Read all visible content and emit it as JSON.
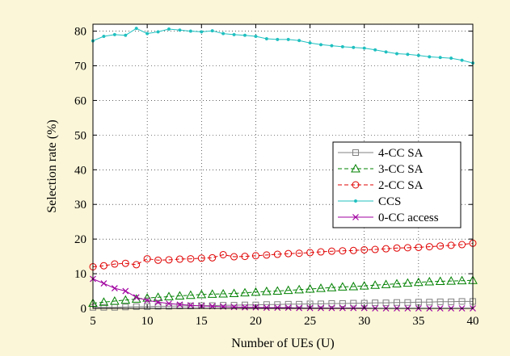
{
  "chart_data": {
    "type": "line",
    "xlabel": "Number of UEs (U)",
    "ylabel": "Selection rate (%)",
    "xlim": [
      5,
      40
    ],
    "ylim": [
      0,
      82
    ],
    "xticks": [
      5,
      10,
      15,
      20,
      25,
      30,
      35,
      40
    ],
    "yticks": [
      0,
      10,
      20,
      30,
      40,
      50,
      60,
      70,
      80
    ],
    "grid": "dotted",
    "legend": "center-right",
    "x": [
      5,
      6,
      7,
      8,
      9,
      10,
      11,
      12,
      13,
      14,
      15,
      16,
      17,
      18,
      19,
      20,
      21,
      22,
      23,
      24,
      25,
      26,
      27,
      28,
      29,
      30,
      31,
      32,
      33,
      34,
      35,
      36,
      37,
      38,
      39,
      40
    ],
    "series": [
      {
        "name": "4-CC SA",
        "color": "#808080",
        "marker": "square",
        "dash": "solid",
        "values": [
          0.3,
          0.3,
          0.3,
          0.4,
          0.5,
          0.5,
          0.6,
          0.6,
          0.7,
          0.7,
          0.8,
          0.8,
          0.9,
          0.9,
          1.0,
          1.0,
          1.1,
          1.1,
          1.2,
          1.2,
          1.3,
          1.3,
          1.4,
          1.4,
          1.5,
          1.5,
          1.6,
          1.6,
          1.7,
          1.7,
          1.8,
          1.8,
          1.9,
          1.9,
          2.0,
          2.0
        ]
      },
      {
        "name": "3-CC SA",
        "color": "#008000",
        "marker": "triangle",
        "dash": "dashed",
        "values": [
          1.5,
          1.8,
          2.1,
          2.4,
          2.7,
          3.0,
          3.2,
          3.4,
          3.6,
          3.8,
          4.0,
          4.1,
          4.2,
          4.3,
          4.5,
          4.7,
          4.9,
          5.0,
          5.2,
          5.4,
          5.6,
          5.8,
          6.0,
          6.2,
          6.3,
          6.5,
          6.7,
          6.9,
          7.1,
          7.3,
          7.5,
          7.7,
          7.8,
          7.9,
          8.0,
          8.1
        ]
      },
      {
        "name": "2-CC SA",
        "color": "#e00000",
        "marker": "circle",
        "dash": "dashed",
        "values": [
          12.0,
          12.3,
          12.8,
          13.0,
          12.6,
          14.3,
          13.9,
          14.0,
          14.2,
          14.3,
          14.5,
          14.6,
          15.5,
          14.9,
          15.0,
          15.2,
          15.4,
          15.6,
          15.8,
          15.9,
          16.1,
          16.3,
          16.5,
          16.6,
          16.7,
          16.9,
          17.0,
          17.2,
          17.4,
          17.5,
          17.6,
          17.8,
          18.0,
          18.2,
          18.4,
          18.8
        ]
      },
      {
        "name": "CCS",
        "color": "#20c0c0",
        "marker": "dot",
        "dash": "solid",
        "values": [
          77.2,
          78.5,
          79.0,
          78.8,
          80.8,
          79.3,
          79.8,
          80.6,
          80.3,
          80.0,
          79.8,
          80.1,
          79.3,
          79.0,
          78.8,
          78.5,
          77.8,
          77.6,
          77.6,
          77.3,
          76.6,
          76.1,
          75.8,
          75.5,
          75.3,
          75.1,
          74.6,
          74.0,
          73.5,
          73.3,
          73.0,
          72.6,
          72.4,
          72.2,
          71.6,
          70.8
        ]
      },
      {
        "name": "0-CC access",
        "color": "#a000a0",
        "marker": "x",
        "dash": "solid",
        "values": [
          8.5,
          7.2,
          5.8,
          5.0,
          3.2,
          2.3,
          1.8,
          1.4,
          1.1,
          0.9,
          0.7,
          0.6,
          0.5,
          0.4,
          0.3,
          0.3,
          0.2,
          0.2,
          0.2,
          0.1,
          0.1,
          0.1,
          0.1,
          0.1,
          0.1,
          0.1,
          0.0,
          0.0,
          0.0,
          0.0,
          0.0,
          0.0,
          0.0,
          0.0,
          0.0,
          0.0
        ]
      }
    ]
  }
}
